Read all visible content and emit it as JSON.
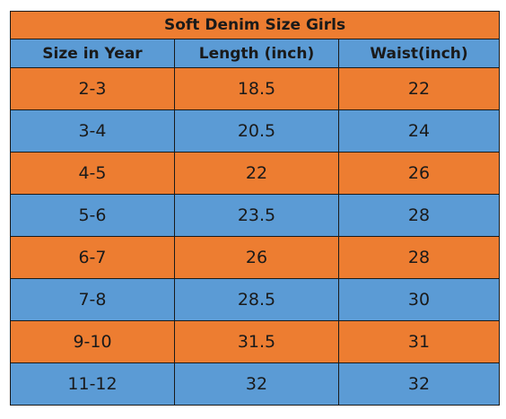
{
  "table": {
    "title": "Soft Denim Size Girls",
    "headers": [
      "Size in Year",
      "Length (inch)",
      "Waist(inch)"
    ],
    "rows": [
      [
        "2-3",
        "18.5",
        "22"
      ],
      [
        "3-4",
        "20.5",
        "24"
      ],
      [
        "4-5",
        "22",
        "26"
      ],
      [
        "5-6",
        "23.5",
        "28"
      ],
      [
        "6-7",
        "26",
        "28"
      ],
      [
        "7-8",
        "28.5",
        "30"
      ],
      [
        "9-10",
        "31.5",
        "31"
      ],
      [
        "11-12",
        "32",
        "32"
      ]
    ]
  },
  "colors": {
    "orange": "#ed7d31",
    "blue": "#5b9bd5",
    "border": "#1a1a1a",
    "text": "#1a1a1a"
  }
}
